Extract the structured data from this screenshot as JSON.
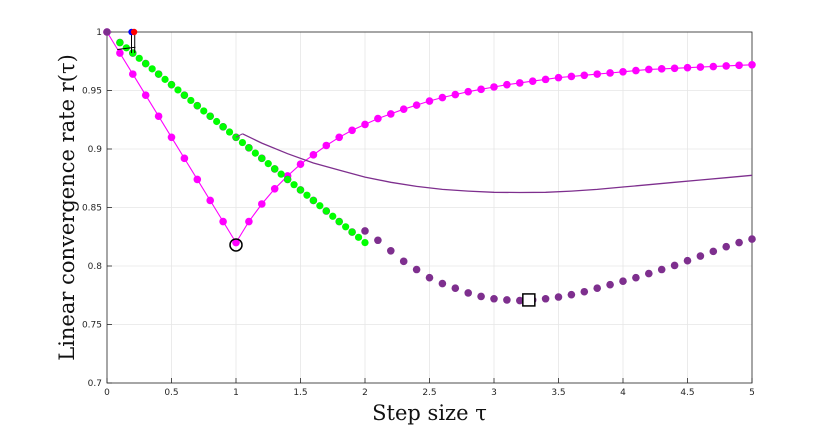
{
  "chart_data": {
    "type": "scatter",
    "title": "",
    "xlabel": "Step size τ",
    "ylabel": "Linear convergence rate r(τ)",
    "xlim": [
      0,
      5
    ],
    "ylim": [
      0.7,
      1.0
    ],
    "x_ticks": [
      0,
      0.5,
      1,
      1.5,
      2,
      2.5,
      3,
      3.5,
      4,
      4.5,
      5
    ],
    "x_tick_labels": [
      "0",
      "0.5",
      "1",
      "1.5",
      "2",
      "2.5",
      "3",
      "3.5",
      "4",
      "4.5",
      "5"
    ],
    "y_ticks": [
      0.7,
      0.75,
      0.8,
      0.85,
      0.9,
      0.95,
      1.0
    ],
    "y_tick_labels": [
      "0.7",
      "0.75",
      "0.8",
      "0.85",
      "0.9",
      "0.95",
      "1"
    ],
    "grid": true,
    "colors": {
      "magenta": "#ff00ff",
      "purple": "#7e2f8e",
      "green": "#00ff00",
      "blue": "#0000ff",
      "red": "#ff0000"
    },
    "series": [
      {
        "style": "magenta-line-markers",
        "color": "#ff00ff",
        "x": [
          0,
          0.1,
          0.2,
          0.3,
          0.4,
          0.5,
          0.6,
          0.7,
          0.8,
          0.9,
          1.0,
          1.1,
          1.2,
          1.3,
          1.4,
          1.5,
          1.6,
          1.7,
          1.8,
          1.9,
          2.0,
          2.1,
          2.2,
          2.3,
          2.4,
          2.5,
          2.6,
          2.7,
          2.8,
          2.9,
          3.0,
          3.1,
          3.2,
          3.3,
          3.4,
          3.5,
          3.6,
          3.7,
          3.8,
          3.9,
          4.0,
          4.1,
          4.2,
          4.3,
          4.4,
          4.5,
          4.6,
          4.7,
          4.8,
          4.9,
          5.0
        ],
        "y": [
          1.0,
          0.982,
          0.964,
          0.946,
          0.928,
          0.91,
          0.892,
          0.874,
          0.856,
          0.838,
          0.82,
          0.838,
          0.853,
          0.866,
          0.877,
          0.887,
          0.895,
          0.903,
          0.91,
          0.916,
          0.921,
          0.926,
          0.93,
          0.934,
          0.9375,
          0.941,
          0.944,
          0.9465,
          0.949,
          0.951,
          0.953,
          0.955,
          0.9565,
          0.958,
          0.9595,
          0.961,
          0.962,
          0.963,
          0.964,
          0.965,
          0.966,
          0.967,
          0.968,
          0.9685,
          0.969,
          0.9695,
          0.97,
          0.9705,
          0.971,
          0.9715,
          0.972
        ]
      },
      {
        "style": "purple-markers",
        "color": "#7e2f8e",
        "x": [
          0,
          0.1,
          0.2,
          0.3,
          0.4,
          0.5,
          0.6,
          0.7,
          0.8,
          0.9,
          1.0,
          1.1,
          1.2,
          1.3,
          1.4,
          1.5,
          1.6,
          1.7,
          1.8,
          1.9,
          2.0,
          2.1,
          2.2,
          2.3,
          2.4,
          2.5,
          2.6,
          2.7,
          2.8,
          2.9,
          3.0,
          3.1,
          3.2,
          3.3,
          3.4,
          3.5,
          3.6,
          3.7,
          3.8,
          3.9,
          4.0,
          4.1,
          4.2,
          4.3,
          4.4,
          4.5,
          4.6,
          4.7,
          4.8,
          4.9,
          5.0
        ],
        "y": [
          1.0,
          0.991,
          0.982,
          0.973,
          0.964,
          0.955,
          0.946,
          0.937,
          0.928,
          0.919,
          0.91,
          0.901,
          0.892,
          0.883,
          0.874,
          0.865,
          0.856,
          0.847,
          0.838,
          0.829,
          0.83,
          0.822,
          0.813,
          0.804,
          0.797,
          0.79,
          0.785,
          0.781,
          0.777,
          0.774,
          0.772,
          0.771,
          0.7705,
          0.771,
          0.772,
          0.7735,
          0.7755,
          0.778,
          0.781,
          0.784,
          0.787,
          0.79,
          0.7935,
          0.797,
          0.8005,
          0.8045,
          0.8085,
          0.8125,
          0.8165,
          0.82,
          0.823
        ]
      },
      {
        "style": "green-markers",
        "color": "#00ff00",
        "x": [
          0.1,
          0.15,
          0.2,
          0.25,
          0.3,
          0.35,
          0.4,
          0.45,
          0.5,
          0.55,
          0.6,
          0.65,
          0.7,
          0.75,
          0.8,
          0.85,
          0.9,
          0.95,
          1.0,
          1.05,
          1.1,
          1.15,
          1.2,
          1.25,
          1.3,
          1.35,
          1.4,
          1.45,
          1.5,
          1.55,
          1.6,
          1.65,
          1.7,
          1.75,
          1.8,
          1.85,
          1.9,
          1.95,
          2.0
        ],
        "y": [
          0.991,
          0.9865,
          0.982,
          0.9775,
          0.973,
          0.9685,
          0.964,
          0.9595,
          0.955,
          0.9505,
          0.946,
          0.9415,
          0.937,
          0.9325,
          0.928,
          0.9235,
          0.919,
          0.9145,
          0.91,
          0.9055,
          0.901,
          0.8965,
          0.892,
          0.8875,
          0.883,
          0.8785,
          0.874,
          0.8695,
          0.865,
          0.8605,
          0.856,
          0.8515,
          0.847,
          0.8425,
          0.838,
          0.8335,
          0.829,
          0.8245,
          0.82
        ]
      },
      {
        "style": "purple-line",
        "color": "#7e2f8e",
        "x": [
          1.05,
          1.2,
          1.4,
          1.6,
          1.8,
          2.0,
          2.2,
          2.4,
          2.6,
          2.8,
          3.0,
          3.2,
          3.4,
          3.6,
          3.8,
          4.0,
          4.2,
          4.4,
          4.6,
          4.8,
          5.0
        ],
        "y": [
          0.913,
          0.905,
          0.896,
          0.888,
          0.882,
          0.876,
          0.8715,
          0.868,
          0.8655,
          0.864,
          0.863,
          0.8628,
          0.863,
          0.864,
          0.8655,
          0.8675,
          0.8695,
          0.8715,
          0.8735,
          0.8755,
          0.8775
        ]
      }
    ],
    "annotations": [
      {
        "shape": "circle",
        "color": "#000000",
        "x": 1.0,
        "y": 0.818
      },
      {
        "shape": "square",
        "color": "#000000",
        "x": 3.27,
        "y": 0.771
      },
      {
        "shape": "line",
        "color": "#000000",
        "x1": 0.08,
        "y1": 0.985,
        "x2": 0.22,
        "y2": 0.987
      },
      {
        "shape": "line",
        "color": "#000000",
        "x1": 0.19,
        "y1": 1.0,
        "x2": 0.19,
        "y2": 0.982
      },
      {
        "shape": "line",
        "color": "#000000",
        "x1": 0.215,
        "y1": 1.0,
        "x2": 0.215,
        "y2": 0.982
      },
      {
        "shape": "dot",
        "color": "#0000ff",
        "x": 0.19,
        "y": 1.0
      },
      {
        "shape": "dot",
        "color": "#ff0000",
        "x": 0.21,
        "y": 1.0
      },
      {
        "shape": "line",
        "color": "#7e2f8e",
        "x1": 1.0,
        "y1": 0.91,
        "x2": 1.05,
        "y2": 0.913
      }
    ]
  }
}
